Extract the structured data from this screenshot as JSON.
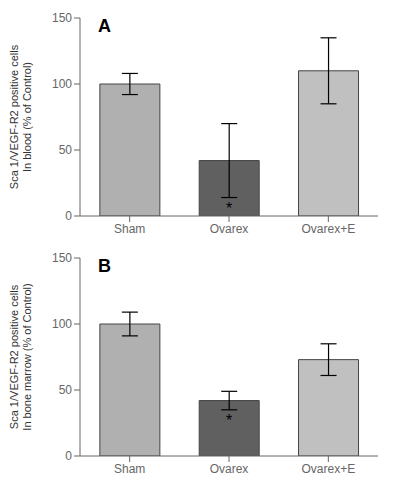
{
  "chart_data": [
    {
      "type": "bar",
      "title": "A",
      "categories": [
        "Sham",
        "Ovarex",
        "Ovarex+E"
      ],
      "values": [
        100,
        42,
        110
      ],
      "errors": [
        8,
        28,
        25
      ],
      "sig_labels": [
        null,
        "*",
        null
      ],
      "ylabel": "Sca 1/VEGF-R2 positive cells\nIn blood (% of Control)",
      "ylim": [
        0,
        150
      ],
      "yticks": [
        0,
        50,
        100,
        150
      ],
      "colors": [
        "#b0b0b0",
        "#606060",
        "#c0c0c0"
      ],
      "grid": false
    },
    {
      "type": "bar",
      "title": "B",
      "categories": [
        "Sham",
        "Ovarex",
        "Ovarex+E"
      ],
      "values": [
        100,
        42,
        73
      ],
      "errors": [
        9,
        7,
        12
      ],
      "sig_labels": [
        null,
        "*",
        null
      ],
      "ylabel": "Sca 1/VEGF-R2 positive cells\nIn bone marrow (% of Control)",
      "ylim": [
        0,
        150
      ],
      "yticks": [
        0,
        50,
        100,
        150
      ],
      "colors": [
        "#b0b0b0",
        "#606060",
        "#c0c0c0"
      ],
      "grid": false
    }
  ]
}
